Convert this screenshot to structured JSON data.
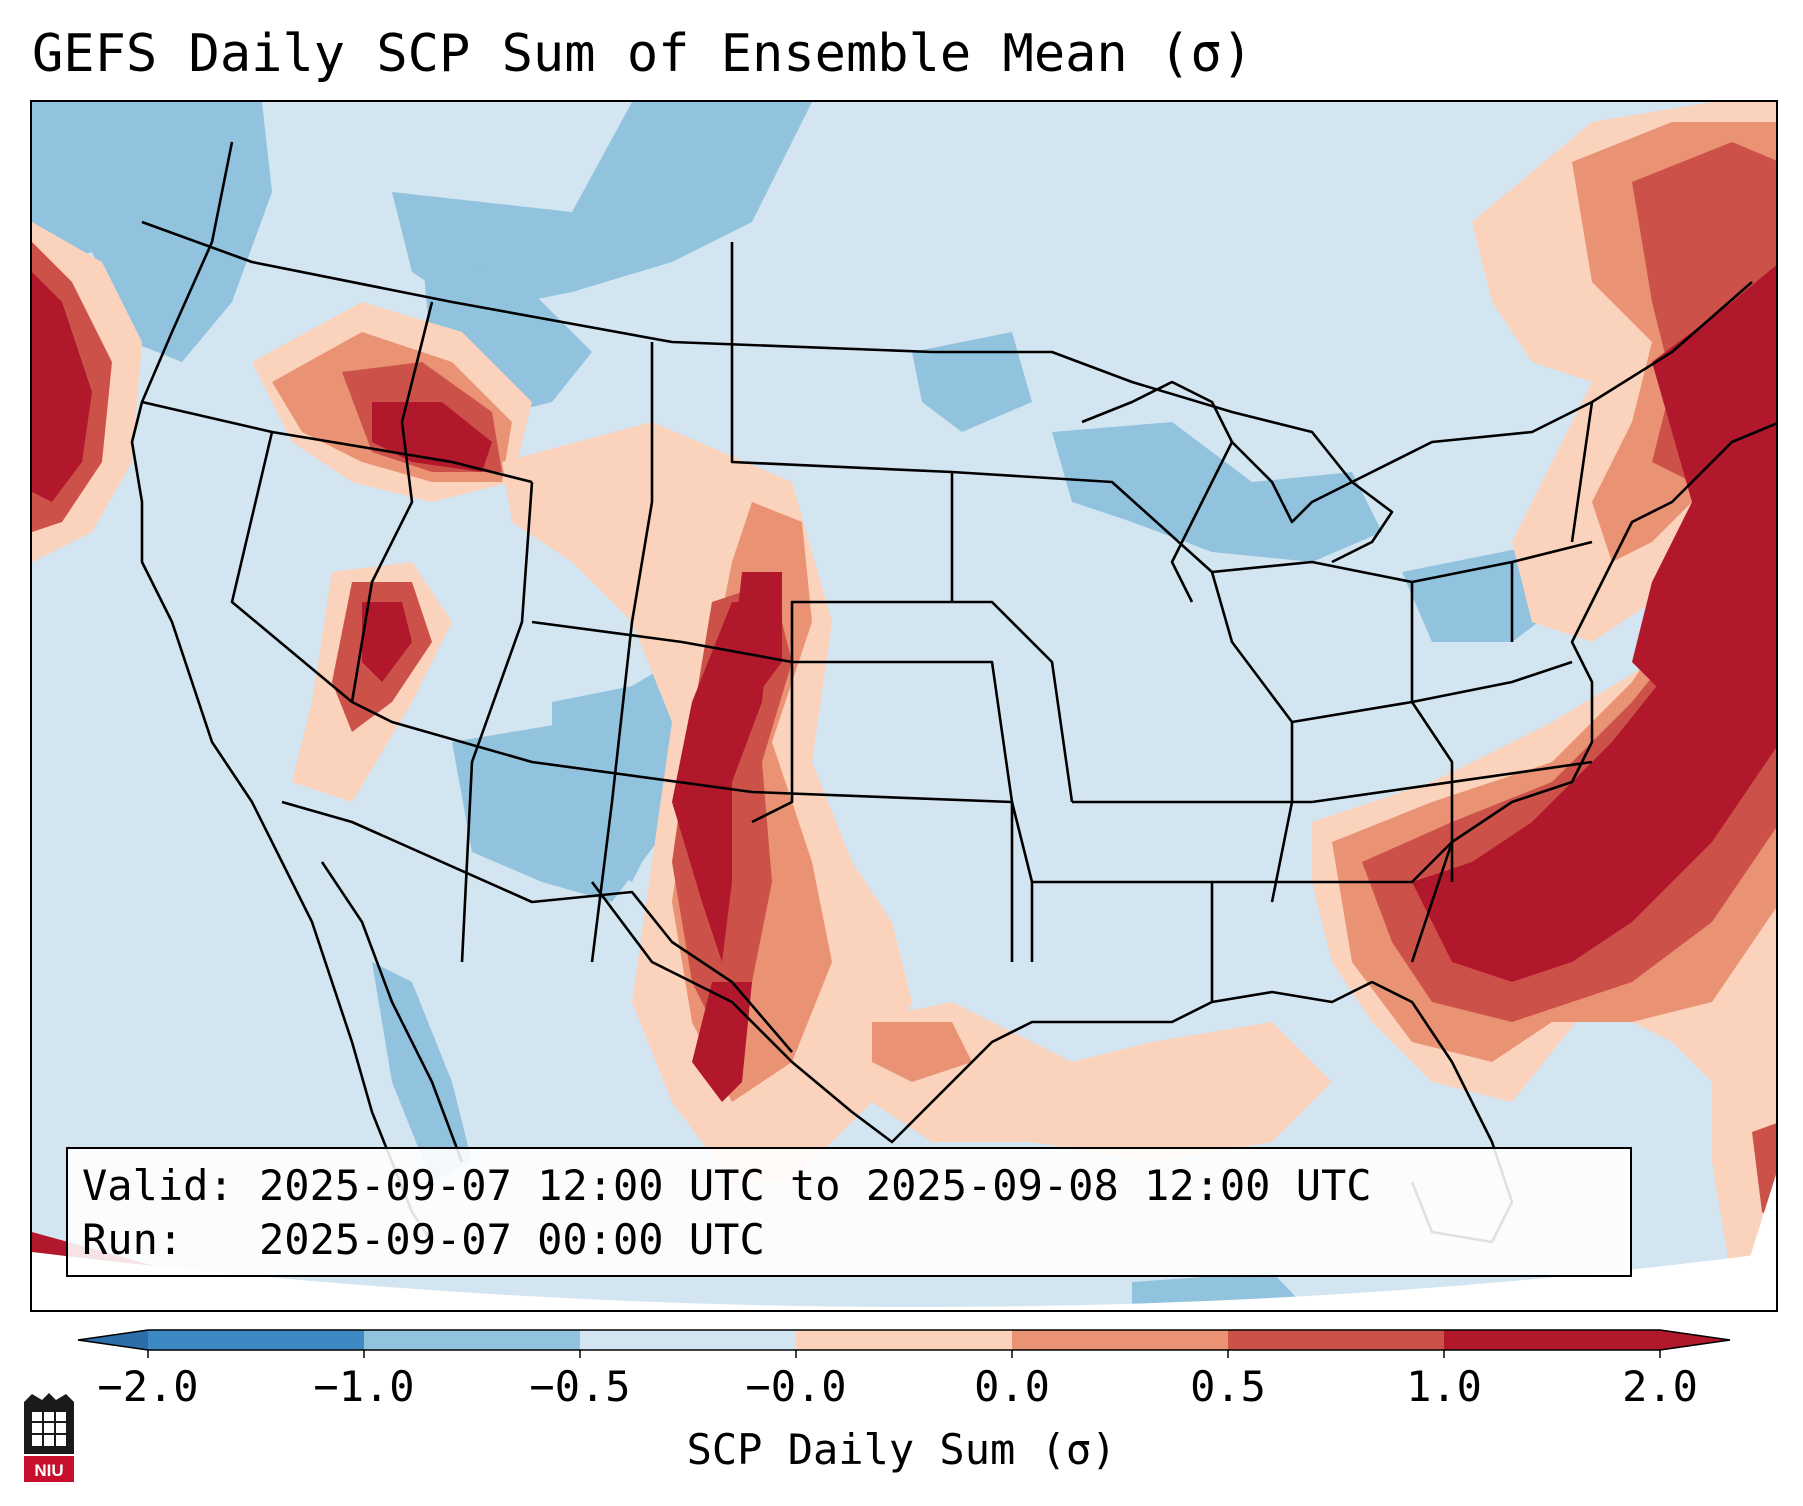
{
  "title": "GEFS Daily SCP Sum of Ensemble Mean (σ)",
  "info": {
    "valid_line": "Valid: 2025-09-07 12:00 UTC to 2025-09-08 12:00 UTC",
    "run_line": "Run:   2025-09-07 00:00 UTC"
  },
  "colorbar": {
    "title": "SCP Daily Sum (σ)",
    "tick_labels": [
      "−2.0",
      "−1.0",
      "−0.5",
      "−0.0",
      "0.0",
      "0.5",
      "1.0",
      "2.0"
    ],
    "bin_colors": [
      "#3c89c3",
      "#91c3df",
      "#d3e5f0",
      "#f7f7f7",
      "#fbd2bc",
      "#ea9274",
      "#cc5249",
      "#b1182b"
    ],
    "extend_low_color": "#2c6ea7",
    "extend_high_color": "#b1182b"
  },
  "logo": {
    "text": "NIU",
    "color": "#c8102e"
  },
  "map_colors": {
    "background": "#d3e5f0",
    "strong_negative": "#91c3df",
    "weak_positive": "#fbd2bc",
    "moderate_positive": "#ea9274",
    "strong_positive": "#cc5249",
    "extreme_positive": "#b1182b"
  }
}
